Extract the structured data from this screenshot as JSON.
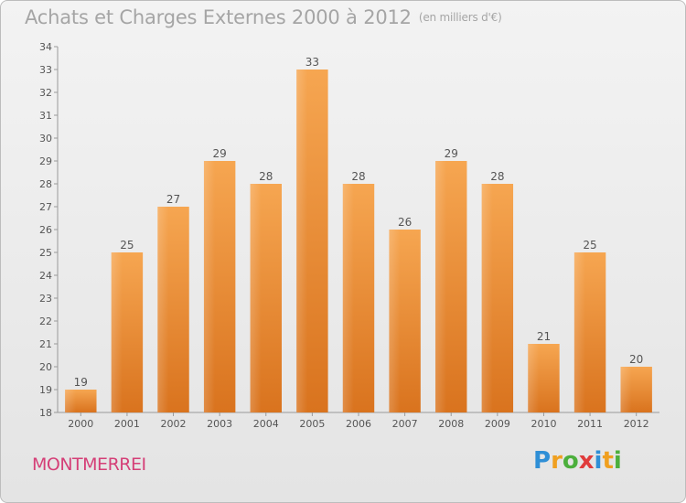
{
  "header": {
    "title": "Achats et Charges Externes 2000 à 2012",
    "subtitle": "(en milliers d'€)"
  },
  "footer": {
    "commune": "MONTMERREI",
    "logo_letters": [
      "P",
      "r",
      "o",
      "x",
      "i",
      "t",
      "i"
    ],
    "logo_colors": [
      "#2f8fd6",
      "#f0a020",
      "#4caf3c",
      "#e03c3c",
      "#2f8fd6",
      "#f0a020",
      "#4caf3c"
    ]
  },
  "colors": {
    "bar_top": "#f6a651",
    "bar_bottom": "#d9731e",
    "text": "#555555",
    "axis": "#9a9a9a"
  },
  "chart_data": {
    "type": "bar",
    "categories": [
      "2000",
      "2001",
      "2002",
      "2003",
      "2004",
      "2005",
      "2006",
      "2007",
      "2008",
      "2009",
      "2010",
      "2011",
      "2012"
    ],
    "values": [
      19,
      25,
      27,
      29,
      28,
      33,
      28,
      26,
      29,
      28,
      21,
      25,
      20
    ],
    "ylim": [
      18,
      34
    ],
    "yticks": [
      18,
      19,
      20,
      21,
      22,
      23,
      24,
      25,
      26,
      27,
      28,
      29,
      30,
      31,
      32,
      33,
      34
    ],
    "grid": false,
    "data_labels": true
  }
}
